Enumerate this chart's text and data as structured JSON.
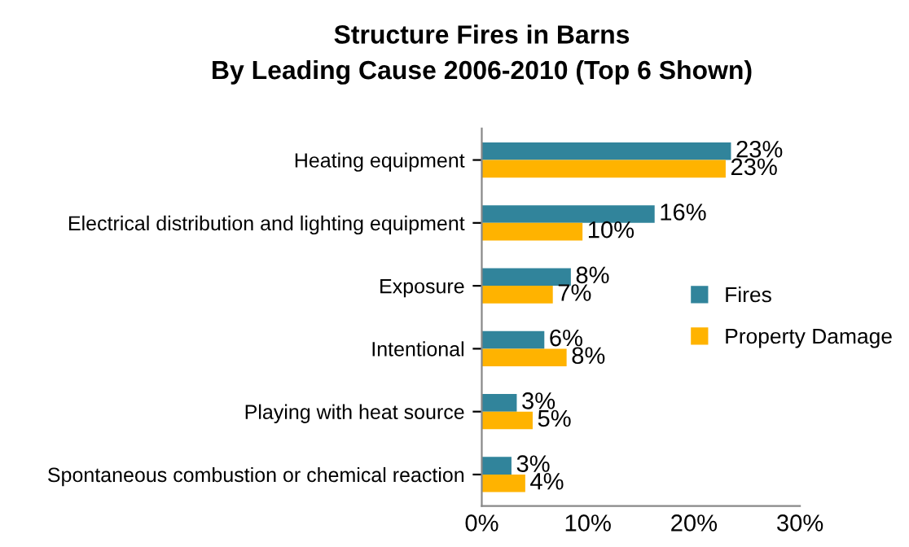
{
  "chart_data": {
    "type": "bar",
    "orientation": "horizontal",
    "title": "Structure Fires in Barns",
    "subtitle": "By Leading Cause 2006-2010 (Top 6 Shown)",
    "categories": [
      "Heating equipment",
      "Electrical distribution and lighting equipment",
      "Exposure",
      "Intentional",
      "Playing with heat source",
      "Spontaneous combustion or chemical reaction"
    ],
    "series": [
      {
        "name": "Fires",
        "color": "#31849b",
        "values": [
          23.5,
          16.3,
          8.4,
          5.9,
          3.3,
          2.8
        ],
        "value_labels": [
          "23%",
          "16%",
          "8%",
          "6%",
          "3%",
          "3%"
        ]
      },
      {
        "name": "Property Damage",
        "color": "#ffb300",
        "values": [
          23.0,
          9.5,
          6.7,
          8.0,
          4.8,
          4.1
        ],
        "value_labels": [
          "23%",
          "10%",
          "7%",
          "8%",
          "5%",
          "4%"
        ]
      }
    ],
    "xlim": [
      0,
      30
    ],
    "xticks": [
      {
        "value": 0,
        "label": "0%"
      },
      {
        "value": 10,
        "label": "10%"
      },
      {
        "value": 20,
        "label": "20%"
      },
      {
        "value": 30,
        "label": "30%"
      }
    ],
    "grid": false,
    "legend": "right"
  }
}
